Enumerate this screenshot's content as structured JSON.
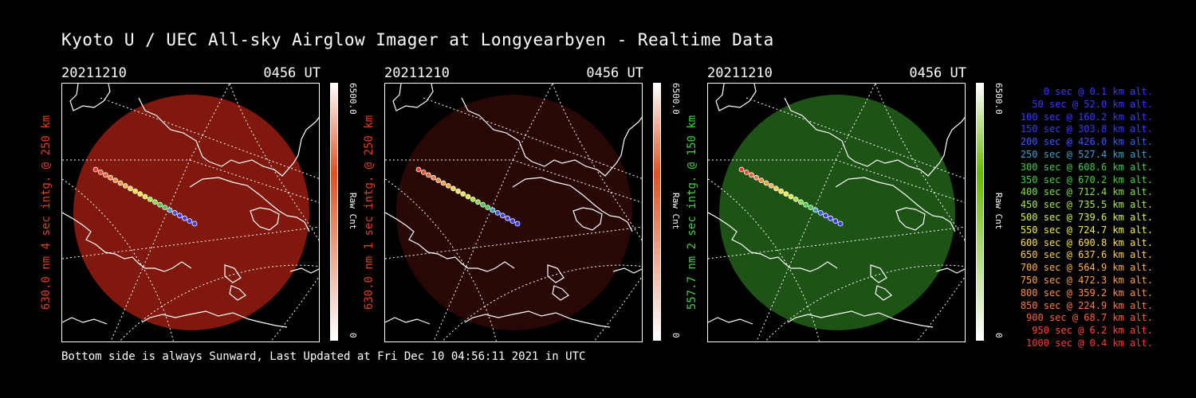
{
  "title": "Kyoto U / UEC All-sky Airglow Imager at Longyearbyen - Realtime Data",
  "footer": "Bottom side is always Sunward, Last Updated at Fri Dec 10 04:56:11 2021 in UTC",
  "chart_data": [
    {
      "type": "heatmap",
      "date": "20211210",
      "time": "0456 UT",
      "ylabel": "630.0 nm 4 sec intg. @ 250 km",
      "colorbar": {
        "max": "6500.0",
        "min": "0",
        "label": "Raw Cnt",
        "color": "#e0501e"
      },
      "image_color": "#8b1a0e",
      "label_color": "#e0401e"
    },
    {
      "type": "heatmap",
      "date": "20211210",
      "time": "0456 UT",
      "ylabel": "630.0 nm 1 sec intg. @ 250 km",
      "colorbar": {
        "max": "6500.0",
        "min": "0",
        "label": "Raw Cnt",
        "color": "#e0501e"
      },
      "image_color": "#2a0906",
      "label_color": "#e0401e"
    },
    {
      "type": "heatmap",
      "date": "20211210",
      "time": "0456 UT",
      "ylabel": "557.7 nm 2 sec intg. @ 150 km",
      "colorbar": {
        "max": "6500.0",
        "min": "0",
        "label": "Raw Cnt",
        "color": "#66b800"
      },
      "image_color": "#1f5a16",
      "label_color": "#40d040"
    }
  ],
  "legend": [
    {
      "sec": "0",
      "alt": "0.1",
      "color": "#3a3aff"
    },
    {
      "sec": "50",
      "alt": "52.0",
      "color": "#3a3aff"
    },
    {
      "sec": "100",
      "alt": "160.2",
      "color": "#3a3aff"
    },
    {
      "sec": "150",
      "alt": "303.8",
      "color": "#3a3aff"
    },
    {
      "sec": "200",
      "alt": "426.0",
      "color": "#3a5aff"
    },
    {
      "sec": "250",
      "alt": "527.4",
      "color": "#3aa0c8"
    },
    {
      "sec": "300",
      "alt": "608.6",
      "color": "#40c850"
    },
    {
      "sec": "350",
      "alt": "670.2",
      "color": "#40d040"
    },
    {
      "sec": "400",
      "alt": "712.4",
      "color": "#80e040"
    },
    {
      "sec": "450",
      "alt": "735.5",
      "color": "#a8e840"
    },
    {
      "sec": "500",
      "alt": "739.6",
      "color": "#d8f040"
    },
    {
      "sec": "550",
      "alt": "724.7",
      "color": "#f0f040"
    },
    {
      "sec": "600",
      "alt": "690.8",
      "color": "#ffe040"
    },
    {
      "sec": "650",
      "alt": "637.6",
      "color": "#ffd040"
    },
    {
      "sec": "700",
      "alt": "564.9",
      "color": "#ffb040"
    },
    {
      "sec": "750",
      "alt": "472.3",
      "color": "#ffa040"
    },
    {
      "sec": "800",
      "alt": "359.2",
      "color": "#ff9040"
    },
    {
      "sec": "850",
      "alt": "224.9",
      "color": "#ff7a40"
    },
    {
      "sec": "900",
      "alt": "68.7",
      "color": "#ff6030"
    },
    {
      "sec": "950",
      "alt": "6.2",
      "color": "#ff4a30"
    },
    {
      "sec": "1000",
      "alt": "0.4",
      "color": "#ff3a30"
    }
  ]
}
